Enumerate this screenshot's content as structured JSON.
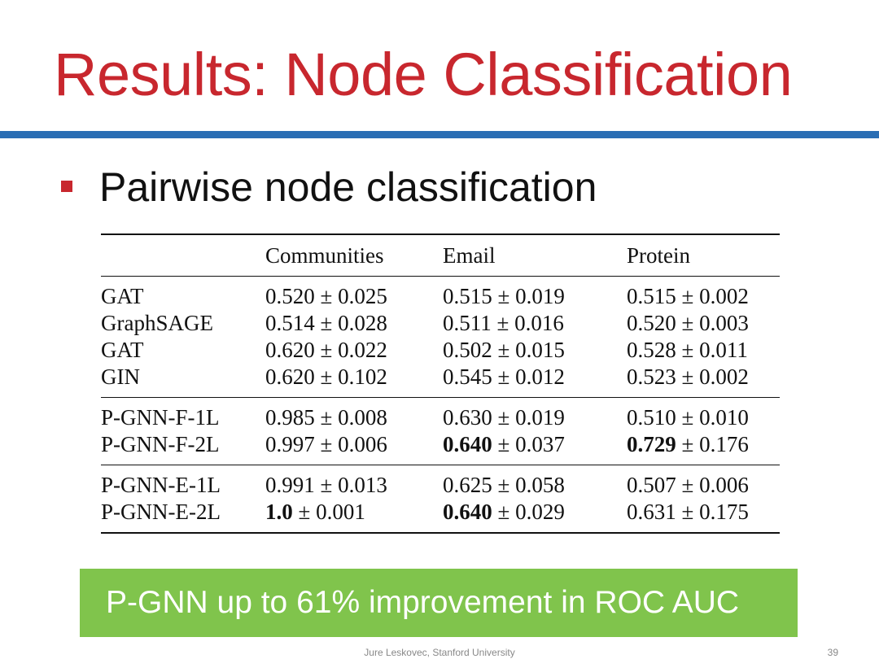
{
  "slide": {
    "title": "Results: Node Classification",
    "bullet": "Pairwise node classification",
    "banner": "P-GNN up to 61% improvement in ROC AUC",
    "footer": "Jure Leskovec, Stanford University",
    "page_number": "39",
    "colors": {
      "title": "#c8272e",
      "rule": "#2a6eb4",
      "bullet_marker": "#c8272e",
      "banner_background": "#80c44c",
      "banner_text": "#ffffff"
    }
  },
  "table": {
    "headers": [
      "",
      "Communities",
      "Email",
      "Protein"
    ],
    "groups": [
      [
        {
          "method": "GAT",
          "cells": [
            {
              "mean": "0.520",
              "std": "0.025",
              "bold": false
            },
            {
              "mean": "0.515",
              "std": "0.019",
              "bold": false
            },
            {
              "mean": "0.515",
              "std": "0.002",
              "bold": false
            }
          ]
        },
        {
          "method": "GraphSAGE",
          "cells": [
            {
              "mean": "0.514",
              "std": "0.028",
              "bold": false
            },
            {
              "mean": "0.511",
              "std": "0.016",
              "bold": false
            },
            {
              "mean": "0.520",
              "std": "0.003",
              "bold": false
            }
          ]
        },
        {
          "method": "GAT",
          "cells": [
            {
              "mean": "0.620",
              "std": "0.022",
              "bold": false
            },
            {
              "mean": "0.502",
              "std": "0.015",
              "bold": false
            },
            {
              "mean": "0.528",
              "std": "0.011",
              "bold": false
            }
          ]
        },
        {
          "method": "GIN",
          "cells": [
            {
              "mean": "0.620",
              "std": "0.102",
              "bold": false
            },
            {
              "mean": "0.545",
              "std": "0.012",
              "bold": false
            },
            {
              "mean": "0.523",
              "std": "0.002",
              "bold": false
            }
          ]
        }
      ],
      [
        {
          "method": "P-GNN-F-1L",
          "cells": [
            {
              "mean": "0.985",
              "std": "0.008",
              "bold": false
            },
            {
              "mean": "0.630",
              "std": "0.019",
              "bold": false
            },
            {
              "mean": "0.510",
              "std": "0.010",
              "bold": false
            }
          ]
        },
        {
          "method": "P-GNN-F-2L",
          "cells": [
            {
              "mean": "0.997",
              "std": "0.006",
              "bold": false
            },
            {
              "mean": "0.640",
              "std": "0.037",
              "bold": true
            },
            {
              "mean": "0.729",
              "std": "0.176",
              "bold": true
            }
          ]
        }
      ],
      [
        {
          "method": "P-GNN-E-1L",
          "cells": [
            {
              "mean": "0.991",
              "std": "0.013",
              "bold": false
            },
            {
              "mean": "0.625",
              "std": "0.058",
              "bold": false
            },
            {
              "mean": "0.507",
              "std": "0.006",
              "bold": false
            }
          ]
        },
        {
          "method": "P-GNN-E-2L",
          "cells": [
            {
              "mean": "1.0",
              "std": "0.001",
              "bold": true
            },
            {
              "mean": "0.640",
              "std": "0.029",
              "bold": true
            },
            {
              "mean": "0.631",
              "std": "0.175",
              "bold": false
            }
          ]
        }
      ]
    ]
  }
}
